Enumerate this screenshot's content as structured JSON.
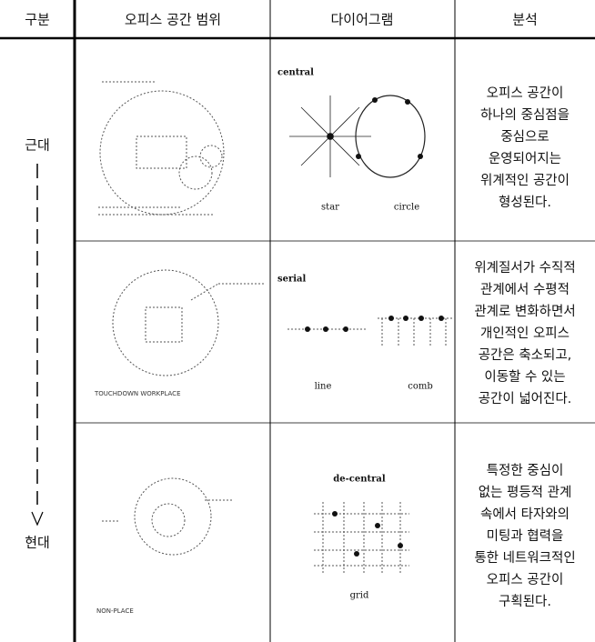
{
  "table": {
    "header": [
      "구분",
      "오피스 공간 범위",
      "다이어그램",
      "분석"
    ],
    "period": {
      "start": "근대",
      "end": "현대"
    },
    "rows": [
      {
        "diagram": {
          "title": "central",
          "labels": [
            "star",
            "circle"
          ]
        },
        "analysis": [
          "오피스 공간이",
          "하나의 중심점을",
          "중심으로",
          "운영되어지는",
          "위계적인 공간이",
          "형성된다."
        ]
      },
      {
        "sketch_label": "TOUCHDOWN WORKPLACE",
        "diagram": {
          "title": "serial",
          "labels": [
            "line",
            "comb"
          ]
        },
        "analysis": [
          "위계질서가 수직적",
          "관계에서 수평적",
          "관계로 변화하면서",
          "개인적인 오피스",
          "공간은 축소되고,",
          "이동할 수 있는",
          "공간이 넓어진다."
        ]
      },
      {
        "sketch_label": "NON-PLACE",
        "diagram": {
          "title": "de-central",
          "labels": [
            "grid"
          ]
        },
        "analysis": [
          "특정한 중심이",
          "없는 평등적 관계",
          "속에서 타자와의",
          "미팅과 협력을",
          "통한 네트워크적인",
          "오피스 공간이",
          "구획된다."
        ]
      }
    ]
  }
}
